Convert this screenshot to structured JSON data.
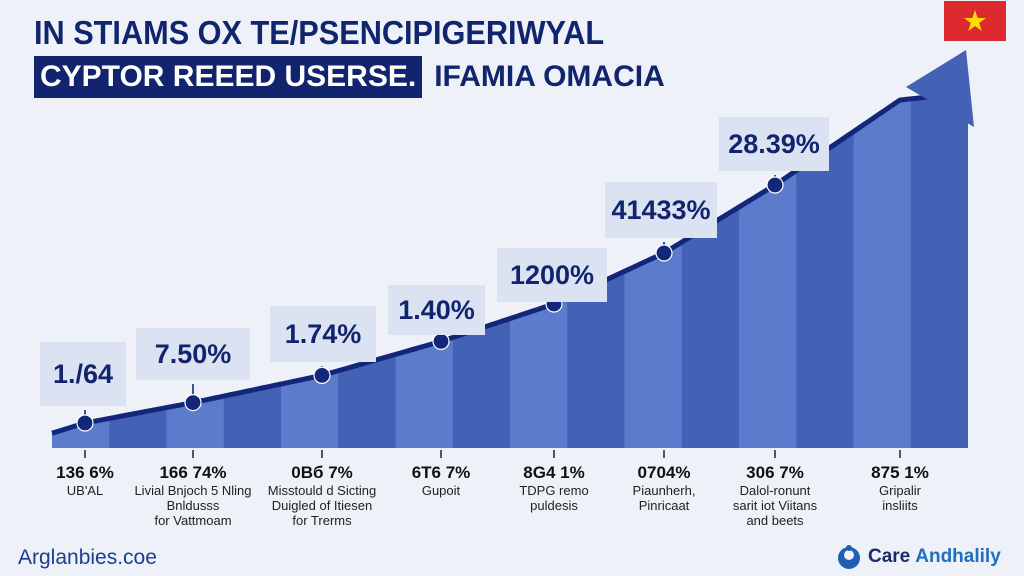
{
  "header": {
    "title_line1": "IN STIAMS OX TE/PSENCIPIGERIWYAL",
    "title_highlight": "CYPTOR REEED USERSE.",
    "title_rest": "IFAMIA OMACIA"
  },
  "flag": {
    "name": "vietnam-flag",
    "bg_color": "#dd2a2f",
    "star_color": "#ffde00"
  },
  "colors": {
    "bar_dark": "#4462b5",
    "bar_light": "#5c7bcc",
    "line": "#13277a",
    "callout_bg": "#dbe3f3",
    "text_dark": "#13246e"
  },
  "chart_data": {
    "type": "area",
    "title": "IN STIAMS OX TE/PSENCIPIGERIWYAL — CYPTOR REEED USERSE. IFAMIA OMACIA",
    "xlabel": "",
    "ylabel": "",
    "grid": false,
    "legend": "none",
    "categories": [
      {
        "value": "136 6%",
        "desc": [
          "UB'AL"
        ]
      },
      {
        "value": "166 74%",
        "desc": [
          "Livial Bnjoch 5 Nling",
          "Bnldusss",
          "for Vattmoam"
        ]
      },
      {
        "value": "0Вб 7%",
        "desc": [
          "Misstould d Sicting",
          "Duigled of Itiesen",
          "for Trerms"
        ]
      },
      {
        "value": "6T6 7%",
        "desc": [
          "Gupoit"
        ]
      },
      {
        "value": "8G4 1%",
        "desc": [
          "TDPG remo",
          "puldesis"
        ]
      },
      {
        "value": "0704%",
        "desc": [
          "Piaunherh,",
          "Pinricaat"
        ]
      },
      {
        "value": "306 7%",
        "desc": [
          "Dalol-ronunt",
          "sarit iot Viitans",
          "and beets"
        ]
      },
      {
        "value": "875 1%",
        "desc": [
          "Gripalir",
          "insliits"
        ]
      }
    ],
    "callouts": [
      "1./64",
      "7.50%",
      "1.74%",
      "1.40%",
      "1200%",
      "41433%",
      "28.39%"
    ],
    "trend_values_relative": [
      0.05,
      0.11,
      0.19,
      0.29,
      0.4,
      0.55,
      0.75,
      1.0
    ],
    "trend_direction": "up",
    "bands": 16
  },
  "footer": {
    "left_text": "Arglanbies.coe",
    "right_brand_part1": "Care",
    "right_brand_part2": "Andhalily"
  }
}
